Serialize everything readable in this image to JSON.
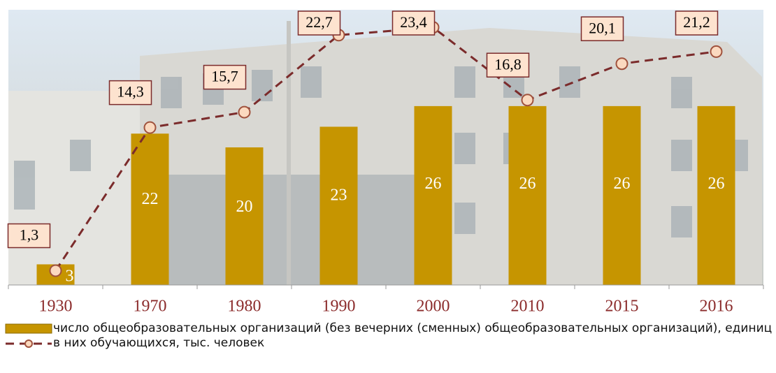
{
  "chart_data": {
    "type": "bar-line",
    "categories": [
      "1930",
      "1970",
      "1980",
      "1990",
      "2000",
      "2010",
      "2015",
      "2016"
    ],
    "ylim": [
      0,
      40
    ],
    "y2lim": [
      0,
      25
    ],
    "series": [
      {
        "name": "число общеобразовательных организаций (без вечерних (сменных) общеобразовательных организаций), единиц",
        "type": "bar",
        "color": "#c69500",
        "values": [
          3,
          22,
          20,
          23,
          26,
          26,
          26,
          26
        ]
      },
      {
        "name": "в них обучающихся,  тыс. человек",
        "type": "line",
        "axis": "y2",
        "color": "#7b2b2b",
        "values": [
          1.3,
          14.3,
          15.7,
          22.7,
          23.4,
          16.8,
          20.1,
          21.2
        ],
        "value_labels": [
          "1,3",
          "14,3",
          "15,7",
          "22,7",
          "23,4",
          "16,8",
          "20,1",
          "21,2"
        ]
      }
    ]
  }
}
